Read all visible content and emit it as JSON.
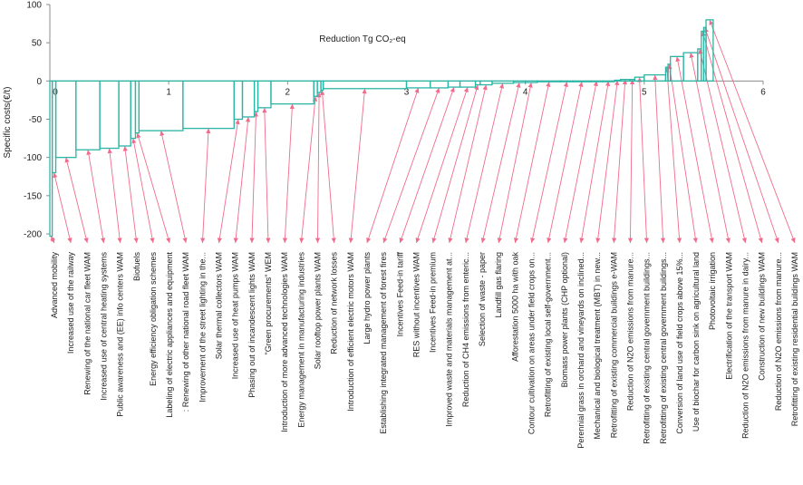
{
  "chart_data": {
    "type": "step",
    "title": "Reduction  Tg CO₂-eq",
    "ylabel": "Specific costs(€/t)",
    "xlabel": "",
    "xlim": [
      0,
      6
    ],
    "ylim": [
      -200,
      100
    ],
    "y_ticks": [
      100,
      50,
      0,
      -50,
      -100,
      -150,
      -200
    ],
    "x_ticks": [
      0,
      1,
      2,
      3,
      4,
      5,
      6
    ],
    "grid": false,
    "line_color": "#2BB5A5",
    "arrow_color": "#F06C8C",
    "measures": [
      {
        "label": "Advanced mobility",
        "x0": 0.0,
        "x1": 0.02,
        "cost": -203
      },
      {
        "label": "Increased use of the railway",
        "x0": 0.02,
        "x1": 0.05,
        "cost": -120
      },
      {
        "label": "Renewing of the national car fleet WAM",
        "x0": 0.05,
        "x1": 0.22,
        "cost": -100
      },
      {
        "label": "Increased use of central heating systems",
        "x0": 0.22,
        "x1": 0.42,
        "cost": -90
      },
      {
        "label": "Public awareness and (EE) info centers WAM",
        "x0": 0.42,
        "x1": 0.58,
        "cost": -88
      },
      {
        "label": "Biofuels",
        "x0": 0.58,
        "x1": 0.68,
        "cost": -85
      },
      {
        "label": "Energy efficiency obligation schemes",
        "x0": 0.68,
        "x1": 0.72,
        "cost": -75
      },
      {
        "label": "Labeling of electric appliances and equipment",
        "x0": 0.72,
        "x1": 0.75,
        "cost": -68
      },
      {
        "label": ": Renewing of other national road fleet WAM",
        "x0": 0.75,
        "x1": 1.12,
        "cost": -65
      },
      {
        "label": "Improvement of the street lighting in the...",
        "x0": 1.12,
        "x1": 1.55,
        "cost": -62
      },
      {
        "label": "Solar thermal collectors WAM",
        "x0": 1.55,
        "x1": 1.62,
        "cost": -50
      },
      {
        "label": "Increased use of heat pumps WAM",
        "x0": 1.62,
        "x1": 1.72,
        "cost": -47
      },
      {
        "label": "Phasing out of incandescent lights WAM",
        "x0": 1.72,
        "x1": 1.75,
        "cost": -40
      },
      {
        "label": "\"Green procurements\" WEM",
        "x0": 1.75,
        "x1": 1.86,
        "cost": -35
      },
      {
        "label": "Introduction of more advanced technologies WAM",
        "x0": 1.86,
        "x1": 2.22,
        "cost": -30
      },
      {
        "label": "Energy management in manufacturing industries",
        "x0": 2.22,
        "x1": 2.25,
        "cost": -20
      },
      {
        "label": "Solar rooftop power plants WAM",
        "x0": 2.25,
        "x1": 2.28,
        "cost": -15
      },
      {
        "label": "Reduction of network losses",
        "x0": 2.28,
        "x1": 2.3,
        "cost": -12
      },
      {
        "label": "Introduction of efficient electric motors WAM",
        "x0": 2.3,
        "x1": 3.0,
        "cost": -10
      },
      {
        "label": "Large hydro power plants",
        "x0": 3.0,
        "x1": 3.2,
        "cost": -9
      },
      {
        "label": "Establishing integrated management of forest fires",
        "x0": 3.2,
        "x1": 3.35,
        "cost": -9
      },
      {
        "label": "Incentives Feed-in tariff",
        "x0": 3.35,
        "x1": 3.45,
        "cost": -8
      },
      {
        "label": "RES without incentives WAM",
        "x0": 3.45,
        "x1": 3.58,
        "cost": -8
      },
      {
        "label": "Incentives Feed-in premium",
        "x0": 3.58,
        "x1": 3.62,
        "cost": -5
      },
      {
        "label": "Improved waste and materials management at...",
        "x0": 3.62,
        "x1": 3.72,
        "cost": -5
      },
      {
        "label": "Reduction of CH4 emissions from enteric...",
        "x0": 3.72,
        "x1": 3.9,
        "cost": -3
      },
      {
        "label": "Selection of waste - paper",
        "x0": 3.9,
        "x1": 4.0,
        "cost": -2
      },
      {
        "label": "Landfill gas flaring",
        "x0": 4.0,
        "x1": 4.1,
        "cost": -2
      },
      {
        "label": "Afforestation 5000 ha with oak",
        "x0": 4.1,
        "x1": 4.3,
        "cost": -1
      },
      {
        "label": "Contour cultivation on areas under field crops on...",
        "x0": 4.3,
        "x1": 4.4,
        "cost": -1
      },
      {
        "label": "Retrofitting of existing local self-government...",
        "x0": 4.4,
        "x1": 4.55,
        "cost": -1
      },
      {
        "label": "Biomass power plants (CHP optional)",
        "x0": 4.55,
        "x1": 4.65,
        "cost": 0
      },
      {
        "label": "Perennial grass in orchard and vineyards on inclined...",
        "x0": 4.65,
        "x1": 4.75,
        "cost": 0
      },
      {
        "label": "Mechanical and biological treatment (MBT) in new...",
        "x0": 4.75,
        "x1": 4.8,
        "cost": 1
      },
      {
        "label": "Retrofitting of existing commercial buildings e-WAM",
        "x0": 4.8,
        "x1": 4.88,
        "cost": 2
      },
      {
        "label": "Reduction of N2O emissions from manure...",
        "x0": 4.88,
        "x1": 4.92,
        "cost": 2
      },
      {
        "label": "Retrofitting of existing central government buildings...",
        "x0": 4.92,
        "x1": 5.0,
        "cost": 5
      },
      {
        "label": "Retrofitting of existing central government buildings...",
        "x0": 5.0,
        "x1": 5.18,
        "cost": 8
      },
      {
        "label": "Conversion of land use of field crops above 15%...",
        "x0": 5.18,
        "x1": 5.2,
        "cost": 18
      },
      {
        "label": "Use of biochar for carbon sink on agricultural land",
        "x0": 5.2,
        "x1": 5.22,
        "cost": 22
      },
      {
        "label": "Photovoltaic irrigation",
        "x0": 5.22,
        "x1": 5.33,
        "cost": 32
      },
      {
        "label": "Electrification of the transport WAM",
        "x0": 5.33,
        "x1": 5.45,
        "cost": 37
      },
      {
        "label": "Reduction of N2O emissions from manure in dairy...",
        "x0": 5.45,
        "x1": 5.48,
        "cost": 42
      },
      {
        "label": "Construction of new buildings WAM",
        "x0": 5.48,
        "x1": 5.5,
        "cost": 65
      },
      {
        "label": "Reduction of N2O emissions from manure...",
        "x0": 5.5,
        "x1": 5.52,
        "cost": 70
      },
      {
        "label": "Retrofitting of existing residential buildings WAM",
        "x0": 5.52,
        "x1": 5.58,
        "cost": 80
      }
    ]
  }
}
